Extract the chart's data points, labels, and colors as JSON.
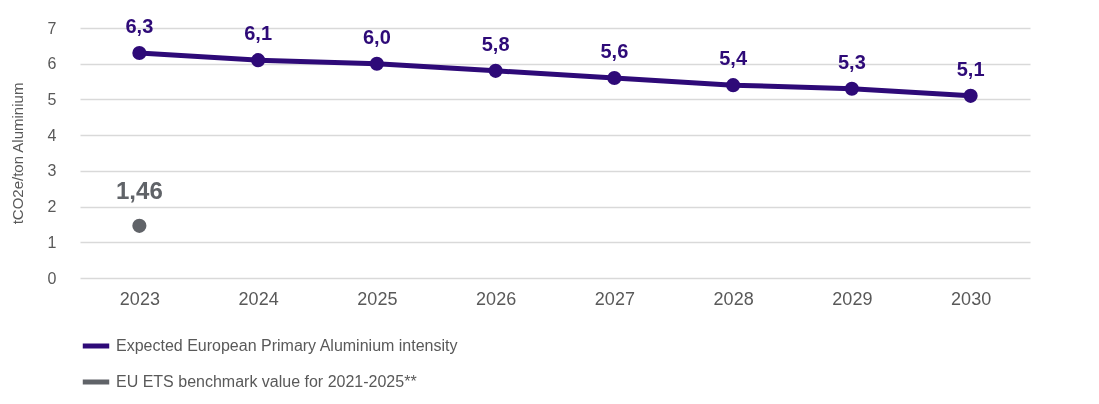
{
  "chart_data": {
    "type": "line",
    "ylabel": "tCO2e/ton Aluminium",
    "categories": [
      "2023",
      "2024",
      "2025",
      "2026",
      "2027",
      "2028",
      "2029",
      "2030"
    ],
    "ylim": [
      0,
      7
    ],
    "yticks": [
      0,
      1,
      2,
      3,
      4,
      5,
      6,
      7
    ],
    "grid": "y",
    "legend": "bottom",
    "marker": "circle",
    "line_style": "solid",
    "series": [
      {
        "name": "Expected European Primary Aluminium intensity",
        "type": "line",
        "color": "#2e0a78",
        "values": [
          6.3,
          6.1,
          6.0,
          5.8,
          5.6,
          5.4,
          5.3,
          5.1
        ],
        "value_labels": [
          "6,3",
          "6,1",
          "6,0",
          "5,8",
          "5,6",
          "5,4",
          "5,3",
          "5,1"
        ]
      },
      {
        "name": "EU ETS benchmark value for 2021-2025**",
        "type": "scatter",
        "color": "#606368",
        "values": [
          1.46,
          null,
          null,
          null,
          null,
          null,
          null,
          null
        ],
        "value_labels": [
          "1,46",
          null,
          null,
          null,
          null,
          null,
          null,
          null
        ]
      }
    ]
  }
}
